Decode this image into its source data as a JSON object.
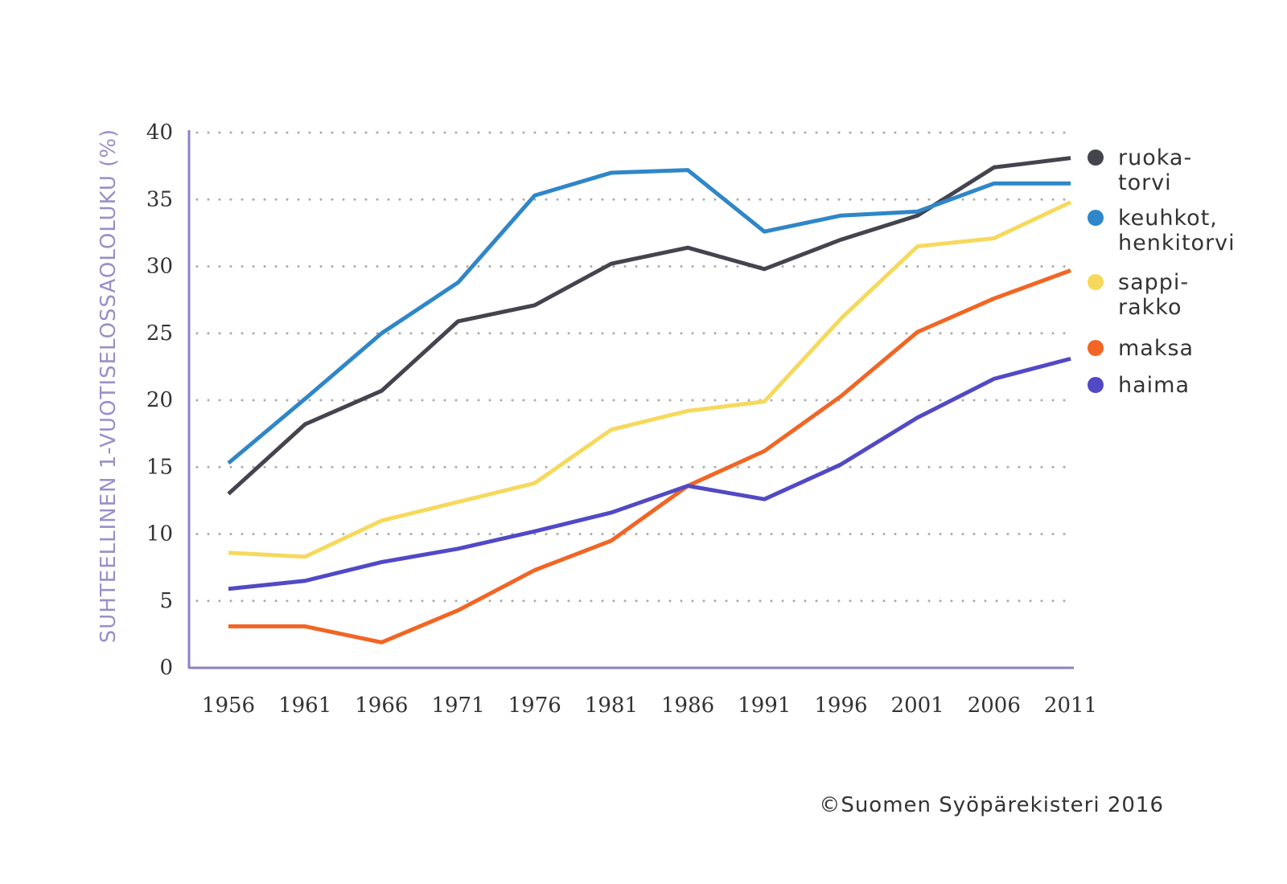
{
  "chart_data": {
    "type": "line",
    "title": "",
    "xlabel": "",
    "ylabel": "SUHTEELLINEN 1-VUOTISELOSSAOLOLUKU (%)",
    "x": [
      1956,
      1961,
      1966,
      1971,
      1976,
      1981,
      1986,
      1991,
      1996,
      2001,
      2006,
      2011
    ],
    "ylim": [
      0,
      40
    ],
    "yticks": [
      0,
      5,
      10,
      15,
      20,
      25,
      30,
      35,
      40
    ],
    "grid": "horizontal dotted",
    "legend_placement": "right",
    "series": [
      {
        "name": "ruoka-torvi",
        "label_lines": [
          "ruoka-",
          "torvi"
        ],
        "color": "#44444f",
        "values": [
          13.0,
          18.2,
          20.7,
          25.9,
          27.1,
          30.2,
          31.4,
          29.8,
          32.0,
          33.8,
          37.4,
          38.1
        ]
      },
      {
        "name": "keuhkot, henkitorvi",
        "label_lines": [
          "keuhkot,",
          "henkitorvi"
        ],
        "color": "#2f86c8",
        "values": [
          15.3,
          20.1,
          25.0,
          28.8,
          35.3,
          37.0,
          37.2,
          32.6,
          33.8,
          34.1,
          36.2,
          36.2
        ]
      },
      {
        "name": "sappi-rakko",
        "label_lines": [
          "sappi-",
          "rakko"
        ],
        "color": "#f6d95c",
        "values": [
          8.6,
          8.3,
          11.0,
          12.4,
          13.8,
          17.8,
          19.2,
          19.9,
          26.1,
          31.5,
          32.1,
          34.8
        ]
      },
      {
        "name": "maksa",
        "label_lines": [
          "maksa"
        ],
        "color": "#f26523",
        "values": [
          3.1,
          3.1,
          1.9,
          4.3,
          7.3,
          9.5,
          13.6,
          16.2,
          20.3,
          25.1,
          27.6,
          29.7
        ]
      },
      {
        "name": "haima",
        "label_lines": [
          "haima"
        ],
        "color": "#5149c5",
        "values": [
          5.9,
          6.5,
          7.9,
          8.9,
          10.2,
          11.6,
          13.6,
          12.6,
          15.2,
          18.7,
          21.6,
          23.1
        ]
      }
    ],
    "axis_color": "#8a82c6",
    "grid_color": "#aaaaaa"
  },
  "footer": {
    "copyright": "©Suomen Syöpärekisteri 2016"
  }
}
